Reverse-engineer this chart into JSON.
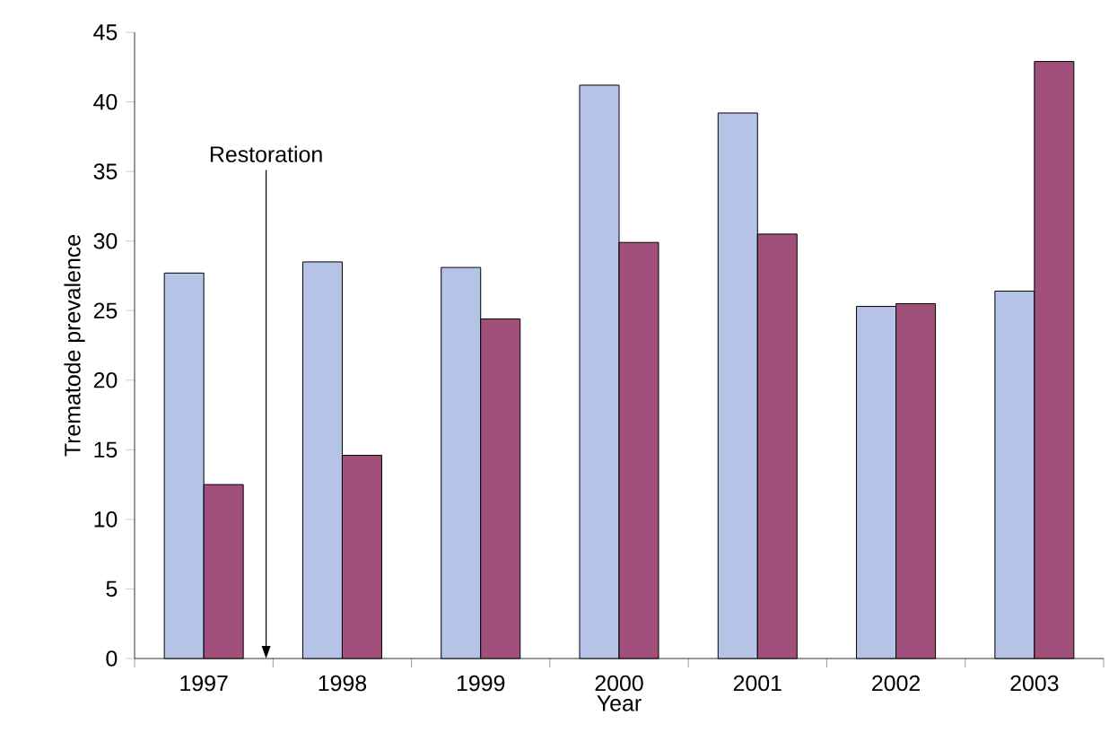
{
  "chart_data": {
    "type": "bar",
    "xlabel": "Year",
    "ylabel": "Trematode prevalence",
    "categories": [
      "1997",
      "1998",
      "1999",
      "2000",
      "2001",
      "2002",
      "2003"
    ],
    "series": [
      {
        "color": "#b4c3e6",
        "values": [
          27.7,
          28.5,
          28.1,
          41.2,
          39.2,
          25.3,
          26.4
        ]
      },
      {
        "color": "#a0507a",
        "values": [
          12.5,
          14.6,
          24.4,
          29.9,
          30.5,
          25.5,
          42.9
        ]
      }
    ],
    "ylim": [
      0,
      45
    ],
    "yticks": [
      0,
      5,
      10,
      15,
      20,
      25,
      30,
      35,
      40,
      45
    ],
    "annotations": [
      "Restoration"
    ],
    "grid": false
  }
}
